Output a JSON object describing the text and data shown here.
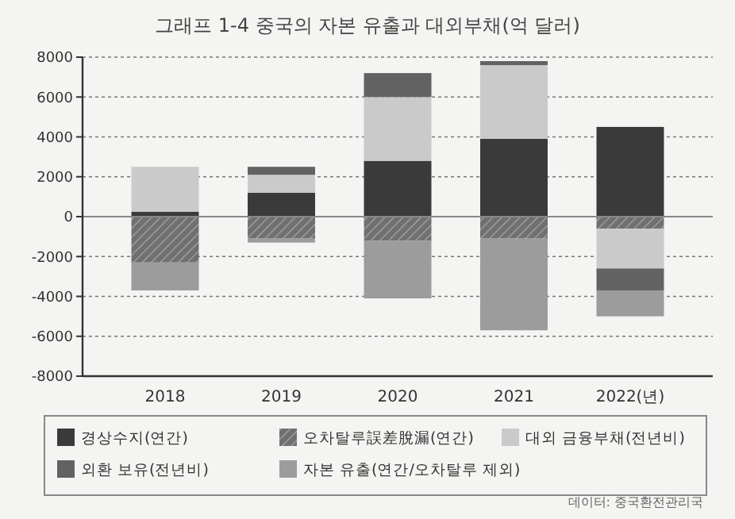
{
  "chart_data": {
    "type": "bar",
    "title": "그래프 1-4 중국의 자본 유출과 대외부채(억 달러)",
    "categories": [
      "2018",
      "2019",
      "2020",
      "2021",
      "2022(년)"
    ],
    "stacked": true,
    "ylim": [
      -8000,
      8000
    ],
    "yticks": [
      -8000,
      -6000,
      -4000,
      -2000,
      0,
      2000,
      4000,
      6000,
      8000
    ],
    "grid": "y",
    "legend": "bottom",
    "series": [
      {
        "name": "경상수지(연간)",
        "color": "#3a3a3a",
        "values": [
          250,
          1200,
          2800,
          3900,
          4500
        ]
      },
      {
        "name": "오차탈루誤差脫漏(연간)",
        "color": "#707070",
        "values": [
          -2300,
          -1100,
          -1200,
          -1100,
          -600
        ]
      },
      {
        "name": "대외 금융부채(전년비)",
        "color": "#cacaca",
        "values": [
          2250,
          900,
          3200,
          3700,
          -2000
        ]
      },
      {
        "name": "외환 보유(전년비)",
        "color": "#626262",
        "values": [
          null,
          400,
          1200,
          200,
          -1100
        ]
      },
      {
        "name": "자본 유출(연간/오차탈루 제외)",
        "color": "#9c9c9c",
        "values": [
          -1400,
          -200,
          -2900,
          -4600,
          -1300
        ]
      }
    ],
    "annotations": [
      "데이터: 중국환전관리국"
    ]
  }
}
